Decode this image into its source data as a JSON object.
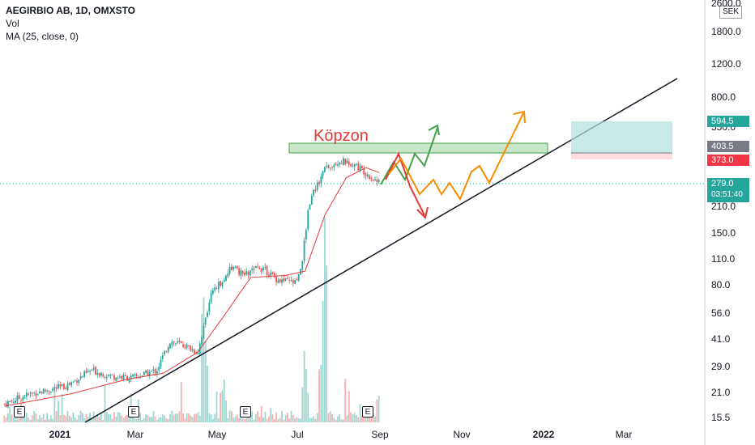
{
  "legend": {
    "title": "AEGIRBIO AB, 1D, OMXSTO",
    "vol": "Vol",
    "ma": "MA (25, close, 0)"
  },
  "currency": "SEK",
  "annotation": "Köpzon",
  "price_tags": {
    "target": "594.5",
    "entry": "403.5",
    "stop": "373.0",
    "last": "279.0",
    "countdown": "03:51:40"
  },
  "colors": {
    "up": "#26a69a",
    "down": "#ef5350",
    "ma": "#e53935",
    "zone_fill": "#a5d6a7",
    "zone_border": "#43a047",
    "target_zone": "#b2dfdb",
    "stop_zone": "#ffcdd2",
    "arrow_green": "#43a047",
    "arrow_red": "#e53935",
    "arrow_orange": "#fb8c00",
    "tag_green": "#26a69a",
    "tag_gray": "#787b86",
    "tag_red": "#f23645"
  },
  "chart_data": {
    "type": "candlestick",
    "title": "AEGIRBIO AB, 1D, OMXSTO",
    "y_scale": "log",
    "y_ticks": [
      "2600.0",
      "1800.0",
      "1200.0",
      "800.0",
      "550.0",
      "403.5",
      "373.0",
      "279.0",
      "210.0",
      "150.0",
      "110.0",
      "80.0",
      "56.0",
      "41.0",
      "29.0",
      "21.0",
      "15.5"
    ],
    "y_tick_values": [
      2600,
      1800,
      1200,
      800,
      550,
      210,
      150,
      110,
      80,
      56,
      41,
      29,
      21,
      15.5
    ],
    "x_ticks": [
      "2021",
      "Mar",
      "May",
      "Jul",
      "Sep",
      "Nov",
      "2022",
      "Mar"
    ],
    "earnings_markers": [
      "E",
      "E",
      "E",
      "E"
    ],
    "series": [
      {
        "name": "close_path",
        "points": [
          [
            "2020-11-20",
            18.5
          ],
          [
            "2020-12-10",
            21
          ],
          [
            "2021-01-05",
            23
          ],
          [
            "2021-01-25",
            28
          ],
          [
            "2021-02-10",
            26
          ],
          [
            "2021-02-25",
            25.5
          ],
          [
            "2021-03-15",
            28
          ],
          [
            "2021-03-25",
            40
          ],
          [
            "2021-04-05",
            38
          ],
          [
            "2021-04-15",
            35
          ],
          [
            "2021-04-25",
            70
          ],
          [
            "2021-05-10",
            100
          ],
          [
            "2021-05-20",
            90
          ],
          [
            "2021-06-01",
            100
          ],
          [
            "2021-06-15",
            85
          ],
          [
            "2021-06-28",
            82
          ],
          [
            "2021-07-02",
            95
          ],
          [
            "2021-07-08",
            220
          ],
          [
            "2021-07-20",
            340
          ],
          [
            "2021-07-30",
            370
          ],
          [
            "2021-08-10",
            360
          ],
          [
            "2021-08-20",
            320
          ],
          [
            "2021-08-30",
            279
          ]
        ]
      },
      {
        "name": "MA (25, close, 0)",
        "points": [
          [
            "2020-11-20",
            18
          ],
          [
            "2021-01-10",
            21
          ],
          [
            "2021-02-20",
            25
          ],
          [
            "2021-03-20",
            27
          ],
          [
            "2021-04-15",
            35
          ],
          [
            "2021-05-05",
            55
          ],
          [
            "2021-05-25",
            88
          ],
          [
            "2021-06-20",
            90
          ],
          [
            "2021-07-05",
            95
          ],
          [
            "2021-07-20",
            190
          ],
          [
            "2021-08-05",
            300
          ],
          [
            "2021-08-20",
            340
          ],
          [
            "2021-08-30",
            320
          ]
        ]
      }
    ],
    "volume_bars": [
      [
        "2021-04-20",
        3.2
      ],
      [
        "2021-05-05",
        1.5
      ],
      [
        "2021-07-05",
        2.0
      ],
      [
        "2021-07-18",
        3.0
      ],
      [
        "2021-07-20",
        3.5
      ],
      [
        "2021-08-30",
        1.0
      ]
    ],
    "last_price": 279.0,
    "buy_zone": [
      373.0,
      403.5
    ],
    "target": 594.5,
    "stop": 373.0,
    "trend_line": [
      [
        "2021-02-01",
        15.5
      ],
      [
        "2022-04-20",
        1050
      ]
    ]
  }
}
